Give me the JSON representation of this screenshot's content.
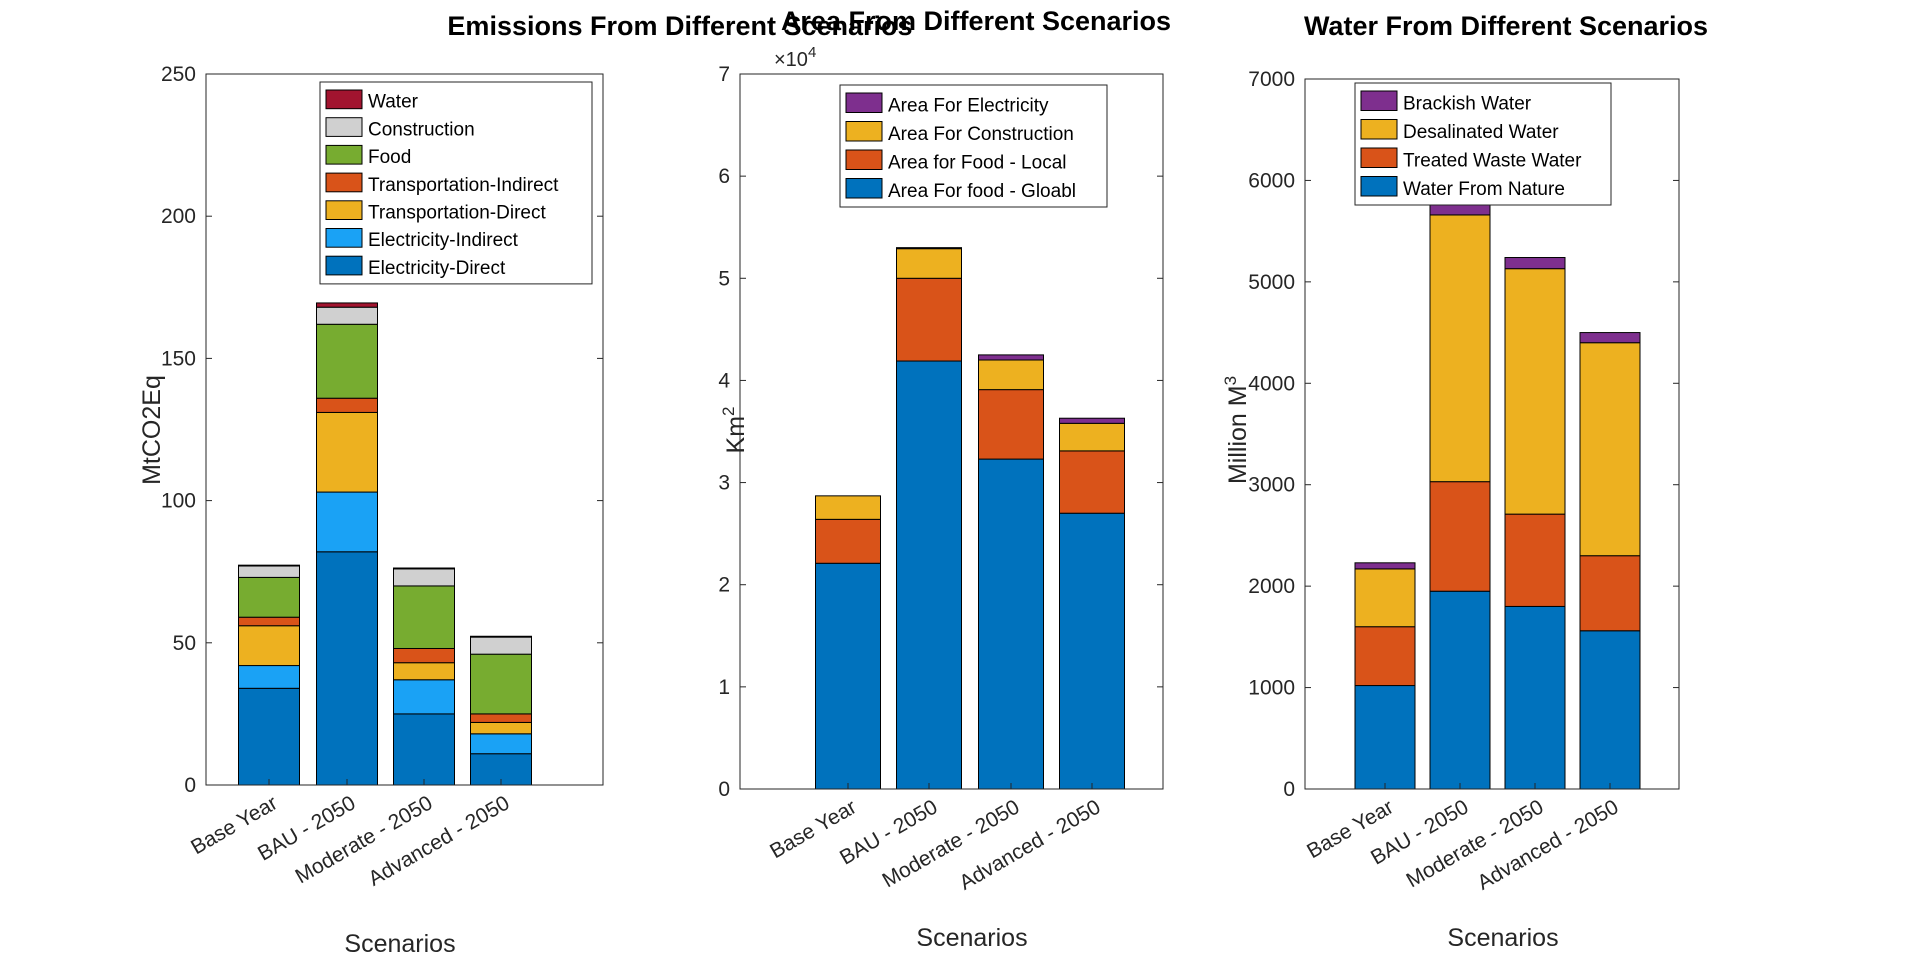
{
  "chart_data": [
    {
      "type": "bar",
      "stacked": true,
      "title": "Emissions From Different Scenarios",
      "xlabel": "Scenarios",
      "ylabel": "MtCO2Eq",
      "categories": [
        "Base Year",
        "BAU - 2050",
        "Moderate - 2050",
        "Advanced - 2050"
      ],
      "ylim": [
        0,
        250
      ],
      "yticks": [
        0,
        50,
        100,
        150,
        200,
        250
      ],
      "ytick_labels": [
        "0",
        "50",
        "100",
        "150",
        "200",
        "250"
      ],
      "legend_position": "top-right",
      "series": [
        {
          "name": "Electricity-Direct",
          "color": "#0072BD",
          "values": [
            34,
            82,
            25,
            11
          ]
        },
        {
          "name": "Electricity-Indirect",
          "color": "#1AA2F5",
          "values": [
            8,
            21,
            12,
            7
          ]
        },
        {
          "name": "Transportation-Direct",
          "color": "#EDB120",
          "values": [
            14,
            28,
            6,
            4
          ]
        },
        {
          "name": "Transportation-Indirect",
          "color": "#D95319",
          "values": [
            3,
            5,
            5,
            3
          ]
        },
        {
          "name": "Food",
          "color": "#77AC30",
          "values": [
            14,
            26,
            22,
            21
          ]
        },
        {
          "name": "Construction",
          "color": "#D0D0D0",
          "values": [
            4,
            6,
            6,
            6
          ]
        },
        {
          "name": "Water",
          "color": "#A2142F",
          "values": [
            0.3,
            1.5,
            0.3,
            0.3
          ]
        }
      ]
    },
    {
      "type": "bar",
      "stacked": true,
      "title": "Area From Different Scenarios",
      "xlabel": "Scenarios",
      "ylabel": "Km",
      "ylabel_superscript": "2",
      "exponent_base": "×10",
      "exponent_power": "4",
      "categories": [
        "Base Year",
        "BAU - 2050",
        "Moderate - 2050",
        "Advanced - 2050"
      ],
      "ylim": [
        0,
        70000
      ],
      "yticks": [
        0,
        10000,
        20000,
        30000,
        40000,
        50000,
        60000,
        70000
      ],
      "ytick_labels": [
        "0",
        "1",
        "2",
        "3",
        "4",
        "5",
        "6",
        "7"
      ],
      "legend_position": "top-right",
      "series": [
        {
          "name": "Area For food - Gloabl",
          "color": "#0072BD",
          "values": [
            22100,
            41900,
            32300,
            27000
          ]
        },
        {
          "name": "Area for Food - Local",
          "color": "#D95319",
          "values": [
            4300,
            8100,
            6800,
            6100
          ]
        },
        {
          "name": "Area For Construction",
          "color": "#EDB120",
          "values": [
            2300,
            2900,
            2900,
            2700
          ]
        },
        {
          "name": "Area For Electricity",
          "color": "#7E2F8E",
          "values": [
            0,
            100,
            500,
            500
          ]
        }
      ]
    },
    {
      "type": "bar",
      "stacked": true,
      "title": "Water From Different Scenarios",
      "xlabel": "Scenarios",
      "ylabel": "Million M",
      "ylabel_superscript": "3",
      "categories": [
        "Base Year",
        "BAU - 2050",
        "Moderate - 2050",
        "Advanced - 2050"
      ],
      "ylim": [
        0,
        7000
      ],
      "yticks": [
        0,
        1000,
        2000,
        3000,
        4000,
        5000,
        6000,
        7000
      ],
      "ytick_labels": [
        "0",
        "1000",
        "2000",
        "3000",
        "4000",
        "5000",
        "6000",
        "7000"
      ],
      "legend_position": "top-left",
      "series": [
        {
          "name": "Water From Nature",
          "color": "#0072BD",
          "values": [
            1020,
            1950,
            1800,
            1560
          ]
        },
        {
          "name": "Treated Waste Water",
          "color": "#D95319",
          "values": [
            580,
            1080,
            910,
            740
          ]
        },
        {
          "name": "Desalinated Water",
          "color": "#EDB120",
          "values": [
            570,
            2630,
            2420,
            2100
          ]
        },
        {
          "name": "Brackish Water",
          "color": "#7E2F8E",
          "values": [
            60,
            110,
            110,
            100
          ]
        }
      ]
    }
  ]
}
